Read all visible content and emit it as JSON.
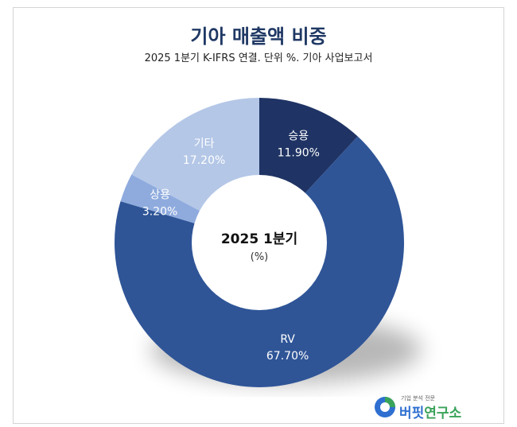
{
  "header": {
    "title": "기아 매출액 비중",
    "subtitle": "2025 1분기 K-IFRS 연결. 단위 %. 기아 사업보고서"
  },
  "chart_data": {
    "type": "pie",
    "variant": "donut",
    "center_label": "2025 1분기",
    "center_sublabel": "(%)",
    "slices": [
      {
        "label": "승용",
        "value": 11.9,
        "display": "11.90%",
        "color": "#1f3464",
        "text_color": "#ffffff"
      },
      {
        "label": "RV",
        "value": 67.7,
        "display": "67.70%",
        "color": "#2f5597",
        "text_color": "#ffffff"
      },
      {
        "label": "상용",
        "value": 3.2,
        "display": "3.20%",
        "color": "#8fabde",
        "text_color": "#ffffff"
      },
      {
        "label": "기타",
        "value": 17.2,
        "display": "17.20%",
        "color": "#b4c7e7",
        "text_color": "#ffffff"
      }
    ]
  },
  "logo": {
    "tagline": "기업 분석 전문",
    "name_part1": "버핏",
    "name_part2": "연구소"
  }
}
